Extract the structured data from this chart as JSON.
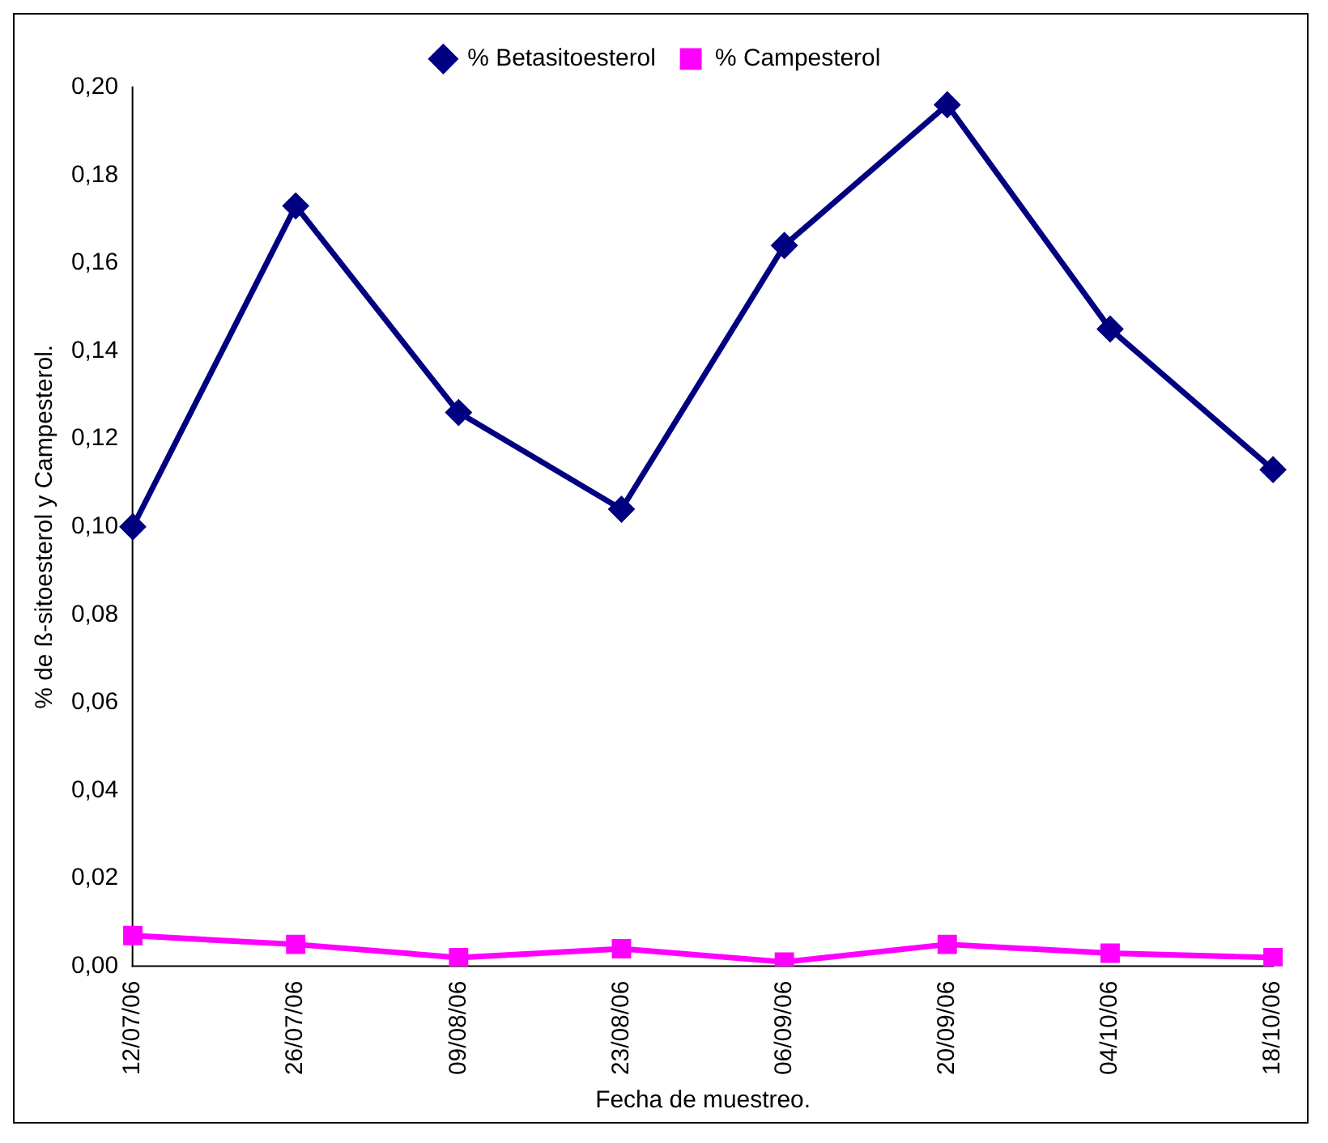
{
  "chart_data": {
    "type": "line",
    "xlabel": "Fecha de muestreo.",
    "ylabel": "% de ß-sitoesterol y Campesterol.",
    "categories": [
      "12/07/06",
      "26/07/06",
      "09/08/06",
      "23/08/06",
      "06/09/06",
      "20/09/06",
      "04/10/06",
      "18/10/06"
    ],
    "series": [
      {
        "name": "% Betasitoesterol",
        "color": "#000080",
        "marker": "diamond",
        "values": [
          0.1,
          0.173,
          0.126,
          0.104,
          0.164,
          0.196,
          0.145,
          0.113
        ]
      },
      {
        "name": "% Campesterol",
        "color": "#ff00ff",
        "marker": "square",
        "values": [
          0.007,
          0.005,
          0.002,
          0.004,
          0.001,
          0.005,
          0.003,
          0.002
        ]
      }
    ],
    "ylim": [
      0,
      0.2
    ],
    "yticks": [
      {
        "value": 0,
        "label": "0,00"
      },
      {
        "value": 0.02,
        "label": "0,02"
      },
      {
        "value": 0.04,
        "label": "0,04"
      },
      {
        "value": 0.06,
        "label": "0,06"
      },
      {
        "value": 0.08,
        "label": "0,08"
      },
      {
        "value": 0.1,
        "label": "0,10"
      },
      {
        "value": 0.12,
        "label": "0,12"
      },
      {
        "value": 0.14,
        "label": "0,14"
      },
      {
        "value": 0.16,
        "label": "0,16"
      },
      {
        "value": 0.18,
        "label": "0,18"
      },
      {
        "value": 0.2,
        "label": "0,20"
      }
    ],
    "grid": false,
    "legend": "top"
  }
}
